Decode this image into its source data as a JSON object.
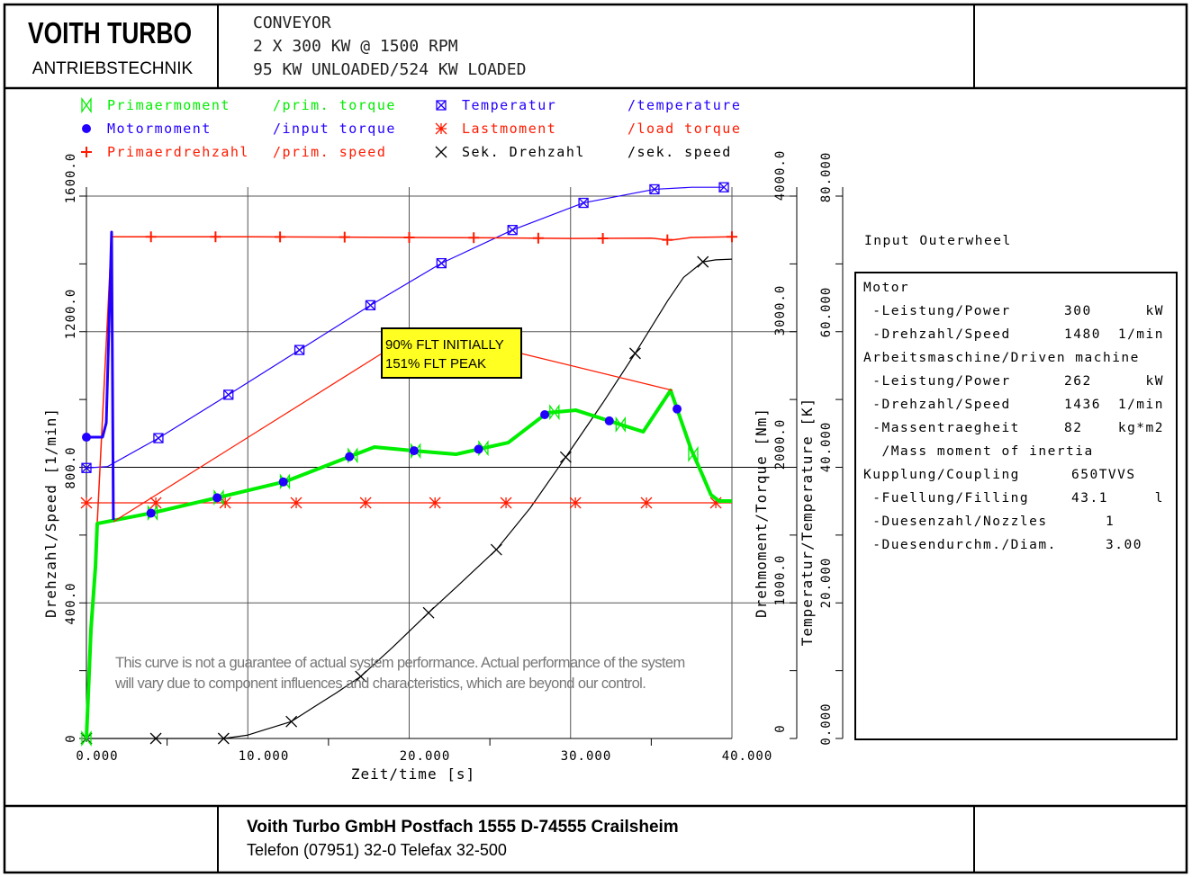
{
  "header": {
    "logo_title": "VOITH TURBO",
    "logo_subtitle": "ANTRIEBSTECHNIK",
    "lines": [
      "CONVEYOR",
      "2 X 300 KW @ 1500 RPM",
      "95 KW UNLOADED/524 KW LOADED"
    ]
  },
  "footer": {
    "address": "Voith Turbo GmbH Postfach 1555 D-74555 Crailsheim",
    "phone": "Telefon (07951) 32-0 Telefax 32-500"
  },
  "annotation": {
    "line1": "90% FLT INITIALLY",
    "line2": "151% FLT PEAK"
  },
  "disclaimer": {
    "line1": "This curve is not a guarantee of actual system performance. Actual performance of the system",
    "line2": "will vary due to component influences and characteristics, which are beyond our control."
  },
  "panel": {
    "heading": "Input Outerwheel",
    "rows": [
      {
        "label": "Motor",
        "value": "",
        "unit": ""
      },
      {
        "label": " -Leistung/Power",
        "value": "300",
        "unit": "kW"
      },
      {
        "label": " -Drehzahl/Speed",
        "value": "1480",
        "unit": "1/min"
      },
      {
        "label": "Arbeitsmaschine/Driven machine",
        "value": "",
        "unit": ""
      },
      {
        "label": " -Leistung/Power",
        "value": "262",
        "unit": "kW"
      },
      {
        "label": " -Drehzahl/Speed",
        "value": "1436",
        "unit": "1/min"
      },
      {
        "label": " -Massentraegheit",
        "value": "82",
        "unit": "kg*m2"
      },
      {
        "label": "  /Mass moment of inertia",
        "value": "",
        "unit": ""
      },
      {
        "label": "Kupplung/Coupling",
        "value": "650TVVS",
        "unit": ""
      },
      {
        "label": " -Fuellung/Filling",
        "value": "43.1",
        "unit": "l"
      },
      {
        "label": " -Duesenzahl/Nozzles",
        "value": "1",
        "unit": ""
      },
      {
        "label": " -Duesendurchm./Diam.",
        "value": "3.00",
        "unit": ""
      }
    ]
  },
  "chart_data": {
    "type": "line",
    "xlabel": "Zeit/time [s]",
    "xlim": [
      0,
      40
    ],
    "xticks": [
      "0.000",
      "10.000",
      "20.000",
      "30.000",
      "40.000"
    ],
    "axes": {
      "speed": {
        "label": "Drehzahl/Speed [1/min]",
        "range": [
          0,
          1600
        ],
        "ticks": [
          "0",
          "400.0",
          "800.0",
          "1200.0",
          "1600.0"
        ]
      },
      "torque": {
        "label": "Drehmoment/Torque [Nm]",
        "range": [
          0,
          4000
        ],
        "ticks": [
          "0",
          "1000.0",
          "2000.0",
          "3000.0",
          "4000.0"
        ]
      },
      "temperature": {
        "label": "Temperatur/Temperature [K]",
        "range": [
          0,
          80
        ],
        "ticks": [
          "0.000",
          "20.000",
          "40.000",
          "60.000",
          "80.000"
        ]
      }
    },
    "legend": [
      {
        "de": "Primaermoment",
        "en": "/prim. torque",
        "color": "#00ee00",
        "marker": "bowtie"
      },
      {
        "de": "Motormoment",
        "en": "/input torque",
        "color": "#2200ff",
        "marker": "dot"
      },
      {
        "de": "Primaerdrehzahl",
        "en": "/prim. speed",
        "color": "#ff1a00",
        "marker": "plus"
      },
      {
        "de": "Temperatur",
        "en": "/temperature",
        "color": "#2200ff",
        "marker": "boxx"
      },
      {
        "de": "Lastmoment",
        "en": "/load   torque",
        "color": "#ff1a00",
        "marker": "star"
      },
      {
        "de": "Sek. Drehzahl",
        "en": "/sek.   speed",
        "color": "#000000",
        "marker": "x"
      }
    ],
    "series": [
      {
        "name": "Primaermoment",
        "axis": "torque",
        "color": "#00ee00",
        "width": 4,
        "marker": "bowtie",
        "x": [
          0,
          0.28,
          0.56,
          0.67,
          4.13,
          8.2,
          12.38,
          16.4,
          17.85,
          20.3,
          22.9,
          26.14,
          28.54,
          30.33,
          34.5,
          36.2,
          37.48,
          38.1,
          38.7,
          39.2,
          40
        ],
        "y": [
          0,
          803,
          1267,
          1585,
          1665,
          1778,
          1897,
          2083,
          2149,
          2122,
          2096,
          2182,
          2401,
          2421,
          2262,
          2567,
          2129,
          1963,
          1797,
          1751,
          1751
        ],
        "marker_x": [
          0,
          4.1,
          8.2,
          12.3,
          16.5,
          20.4,
          24.6,
          29.0,
          33.1,
          37.6
        ]
      },
      {
        "name": "Motormoment",
        "axis": "torque",
        "color": "#2200ff",
        "width": 3,
        "marker": "dot",
        "x": [
          0,
          1.0,
          1.23,
          1.56,
          1.67
        ],
        "y": [
          2222,
          2222,
          2328,
          3735,
          1612
        ],
        "marker_x": [
          0,
          4.0,
          8.1,
          12.2,
          16.3,
          20.3,
          24.3,
          28.4,
          32.4,
          36.6
        ],
        "follows": "Primaermoment"
      },
      {
        "name": "Primaerdrehzahl",
        "axis": "speed",
        "color": "#ff1a00",
        "width": 1.5,
        "marker": "plus",
        "x": [
          0,
          1.56,
          10,
          20,
          25,
          30,
          35,
          36.2,
          37.5,
          40
        ],
        "y": [
          0,
          1480,
          1480,
          1478,
          1477,
          1475,
          1476,
          1470,
          1478,
          1480
        ],
        "marker_x": [
          4,
          8,
          12,
          16,
          20,
          24,
          28,
          32,
          36,
          40
        ]
      },
      {
        "name": "Temperatur",
        "axis": "temperature",
        "color": "#2200ff",
        "width": 1.2,
        "marker": "boxx",
        "x": [
          0,
          1.3,
          4.46,
          8.8,
          13.2,
          17.6,
          22,
          26.4,
          30.8,
          35.2,
          37.5,
          39.5
        ],
        "y": [
          39.9,
          40.1,
          44.3,
          50.7,
          57.3,
          63.9,
          70.1,
          75.0,
          79.0,
          81.0,
          81.3,
          81.3
        ],
        "marker_x": [
          0,
          4.46,
          8.8,
          13.2,
          17.6,
          22,
          26.4,
          30.8,
          35.2,
          39.5
        ]
      },
      {
        "name": "Lastmoment",
        "axis": "torque",
        "color": "#ff1a00",
        "width": 1.2,
        "marker": "star",
        "x": [
          0,
          40
        ],
        "y": [
          1738,
          1738
        ],
        "marker_x": [
          0,
          4.3,
          8.6,
          13.0,
          17.3,
          21.6,
          26.0,
          30.3,
          34.7,
          39.0
        ]
      },
      {
        "name": "Sek. Drehzahl",
        "axis": "speed",
        "color": "#000000",
        "width": 1.2,
        "marker": "x",
        "x": [
          0,
          8.5,
          10,
          11,
          12.7,
          14,
          15.5,
          17,
          19,
          21.2,
          23,
          25.4,
          27.5,
          29.7,
          32,
          34,
          36,
          37,
          38.2,
          39,
          40
        ],
        "y": [
          0,
          0,
          10,
          25,
          50,
          90,
          135,
          183,
          270,
          371,
          450,
          557,
          680,
          830,
          990,
          1136,
          1290,
          1360,
          1406,
          1412,
          1414
        ],
        "marker_x": [
          0,
          4.3,
          8.5,
          12.7,
          17,
          21.2,
          25.4,
          29.7,
          34,
          38.2
        ]
      }
    ]
  }
}
